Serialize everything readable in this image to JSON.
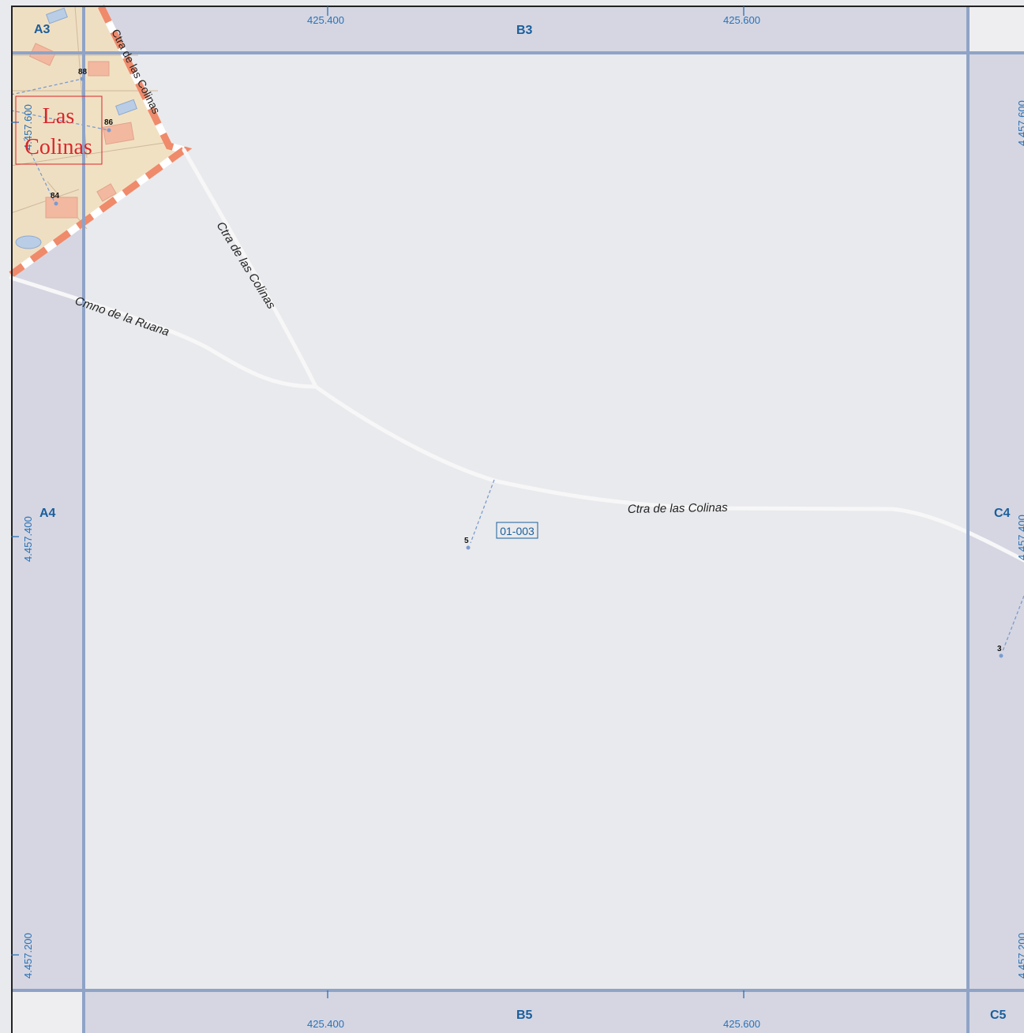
{
  "grid": {
    "cells": {
      "a3": "A3",
      "b3": "B3",
      "a4": "A4",
      "c4": "C4",
      "b5": "B5",
      "c5": "C5"
    },
    "eastings": {
      "left": "425.400",
      "right": "425.600"
    },
    "northings": {
      "top": "4.457.600",
      "middle": "4.457.400",
      "bottom": "4.457.200"
    }
  },
  "roads": {
    "ctra_colinas_border": "Ctra de las Colinas",
    "ctra_colinas_diagonal": "Ctra de las Colinas",
    "ctra_colinas_main": "Ctra de las Colinas",
    "cmno_ruana": "Cmno de la Ruana"
  },
  "addresses": {
    "n88": "88",
    "n86": "86",
    "n84": "84",
    "n5": "5",
    "n3": "3"
  },
  "place_label": {
    "line1": "Las",
    "line2": "Colinas"
  },
  "zone_label": "01-003",
  "colors": {
    "map_background": "#e9eaed",
    "grid_band": "#d5d6e2",
    "grid_line": "#8fa3c7",
    "urban_area": "#f1dfbf",
    "boundary": "#ef8a6b",
    "road": "#f7f7f8",
    "accent_text": "#1a5e9c",
    "place_text": "#d9262b"
  }
}
